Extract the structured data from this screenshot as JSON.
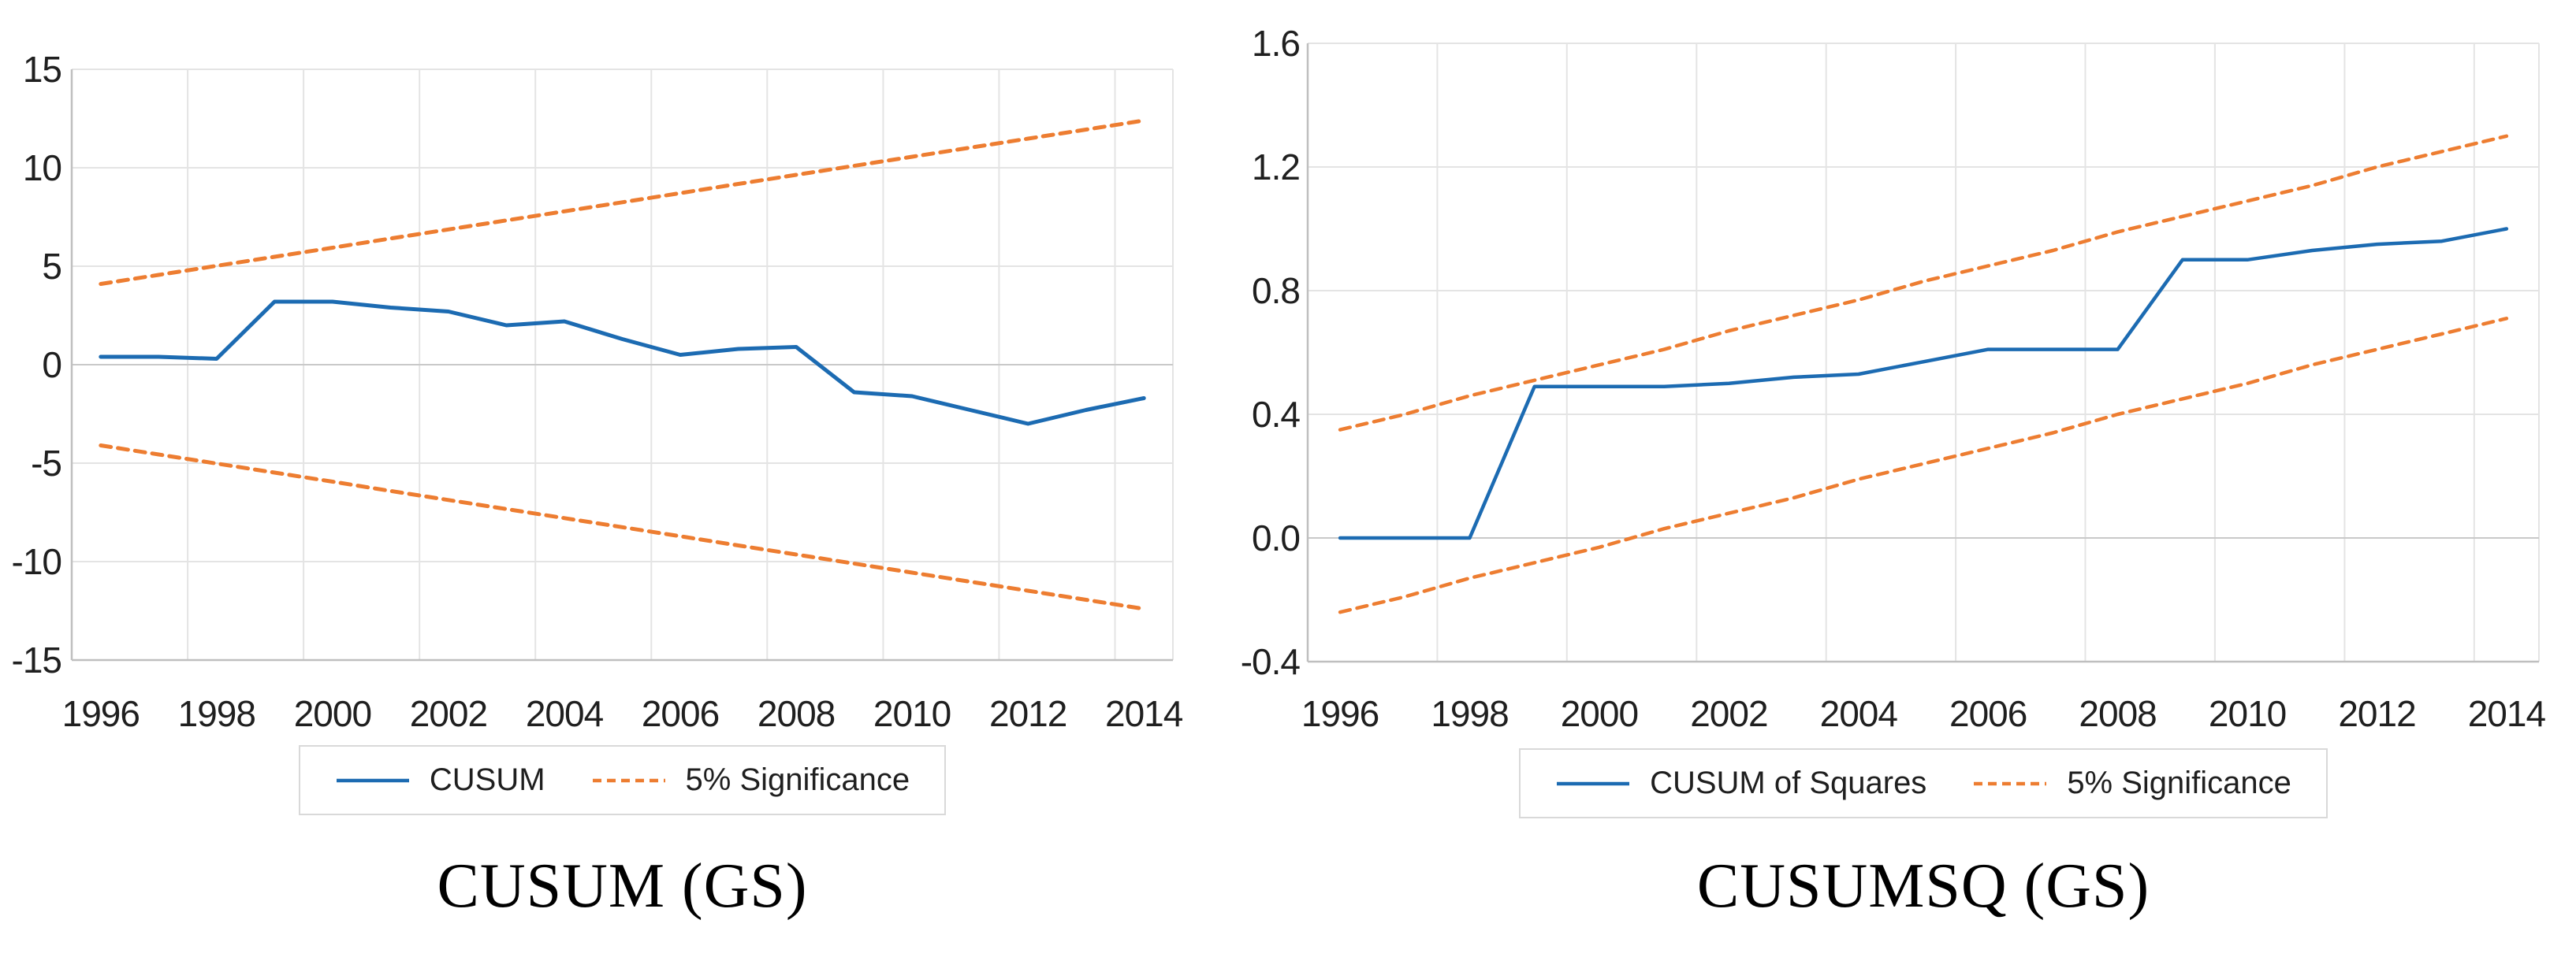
{
  "figure": {
    "background": "#ffffff",
    "text_color": "#1f1f1f",
    "grid_color": "#e4e4e4",
    "zero_line_color": "#c9c9c9",
    "axis_color": "#bfbfbf",
    "accent_blue": "#1c6bb2",
    "accent_orange": "#ed7d31"
  },
  "chart_data": [
    {
      "type": "line",
      "title": "CUSUM (GS)",
      "x": [
        1996,
        1997,
        1998,
        1999,
        2000,
        2001,
        2002,
        2003,
        2004,
        2005,
        2006,
        2007,
        2008,
        2009,
        2010,
        2011,
        2012,
        2013,
        2014
      ],
      "x_tick_labels": [
        "1996",
        "1998",
        "2000",
        "2002",
        "2004",
        "2006",
        "2008",
        "2010",
        "2012",
        "2014"
      ],
      "ylim": [
        -15,
        15
      ],
      "yticks": [
        15,
        10,
        5,
        0,
        -5,
        -10,
        -15
      ],
      "ytick_labels": [
        "15",
        "10",
        "5",
        "0",
        "-5",
        "-10",
        "-15"
      ],
      "grid": true,
      "legend_position": "bottom",
      "series": [
        {
          "name": "CUSUM",
          "color": "#1c6bb2",
          "line_style": "solid",
          "show_in_legend": true,
          "values": [
            0.4,
            0.4,
            0.3,
            3.2,
            3.2,
            2.9,
            2.7,
            2.0,
            2.2,
            1.3,
            0.5,
            0.8,
            0.9,
            -1.4,
            -1.6,
            -2.3,
            -3.0,
            -2.3,
            -1.7
          ]
        },
        {
          "name": "5% Significance",
          "color": "#ed7d31",
          "line_style": "dashed",
          "show_in_legend": true,
          "values": [
            4.1,
            4.56,
            5.02,
            5.48,
            5.94,
            6.41,
            6.87,
            7.33,
            7.79,
            8.25,
            8.71,
            9.18,
            9.64,
            10.1,
            10.56,
            11.02,
            11.48,
            11.94,
            12.4
          ]
        },
        {
          "name": "5% Significance",
          "color": "#ed7d31",
          "line_style": "dashed",
          "show_in_legend": false,
          "values": [
            -4.1,
            -4.56,
            -5.02,
            -5.48,
            -5.94,
            -6.41,
            -6.87,
            -7.33,
            -7.79,
            -8.25,
            -8.71,
            -9.18,
            -9.64,
            -10.1,
            -10.56,
            -11.02,
            -11.48,
            -11.94,
            -12.4
          ]
        }
      ]
    },
    {
      "type": "line",
      "title": "CUSUMSQ (GS)",
      "x": [
        1996,
        1997,
        1998,
        1999,
        2000,
        2001,
        2002,
        2003,
        2004,
        2005,
        2006,
        2007,
        2008,
        2009,
        2010,
        2011,
        2012,
        2013,
        2014
      ],
      "x_tick_labels": [
        "1996",
        "1998",
        "2000",
        "2002",
        "2004",
        "2006",
        "2008",
        "2010",
        "2012",
        "2014"
      ],
      "ylim": [
        -0.4,
        1.6
      ],
      "yticks": [
        1.6,
        1.2,
        0.8,
        0.4,
        0.0,
        -0.4
      ],
      "ytick_labels": [
        "1.6",
        "1.2",
        "0.8",
        "0.4",
        "0.0",
        "-0.4"
      ],
      "grid": true,
      "legend_position": "bottom",
      "series": [
        {
          "name": "CUSUM of Squares",
          "color": "#1c6bb2",
          "line_style": "solid",
          "show_in_legend": true,
          "values": [
            0.0,
            0.0,
            0.0,
            0.49,
            0.49,
            0.49,
            0.5,
            0.52,
            0.53,
            0.57,
            0.61,
            0.61,
            0.61,
            0.9,
            0.9,
            0.93,
            0.95,
            0.96,
            1.0
          ]
        },
        {
          "name": "5% Significance",
          "color": "#ed7d31",
          "line_style": "dashed",
          "show_in_legend": true,
          "values": [
            0.35,
            0.4,
            0.46,
            0.51,
            0.56,
            0.61,
            0.67,
            0.72,
            0.77,
            0.83,
            0.88,
            0.93,
            0.99,
            1.04,
            1.09,
            1.14,
            1.2,
            1.25,
            1.3
          ]
        },
        {
          "name": "5% Significance",
          "color": "#ed7d31",
          "line_style": "dashed",
          "show_in_legend": false,
          "values": [
            -0.24,
            -0.19,
            -0.13,
            -0.08,
            -0.03,
            0.03,
            0.08,
            0.13,
            0.19,
            0.24,
            0.29,
            0.34,
            0.4,
            0.45,
            0.5,
            0.56,
            0.61,
            0.66,
            0.71
          ]
        }
      ]
    }
  ]
}
